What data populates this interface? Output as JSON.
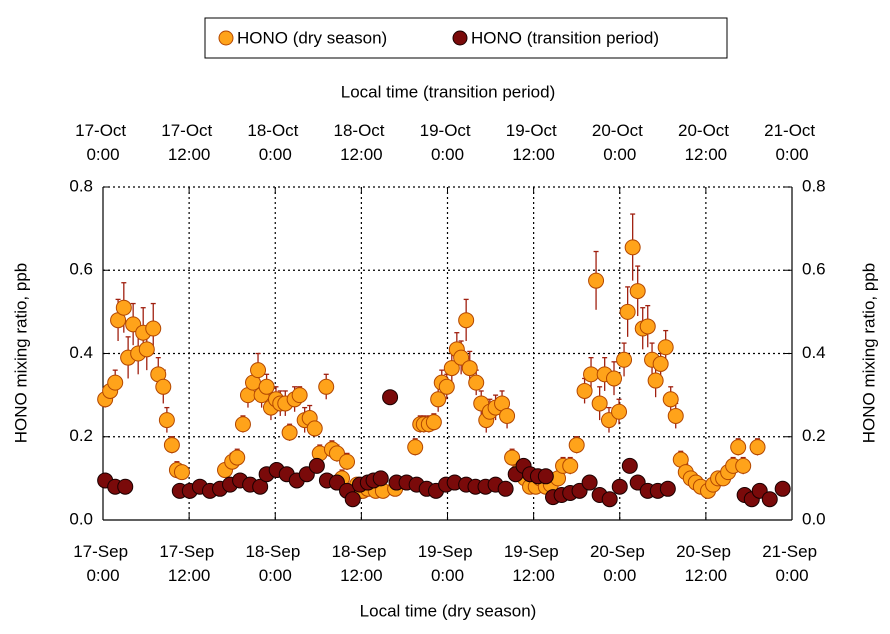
{
  "chart_data": {
    "type": "scatter",
    "xlabel": "Local time (dry season)",
    "x2label": "Local time (transition period)",
    "ylabel": "HONO mixing ratio,  ppb",
    "y2label": "HONO mixing ratio,  ppb",
    "xlim": [
      0,
      96
    ],
    "xticks": [
      {
        "value": 0,
        "label": "17-Sep 0:00"
      },
      {
        "value": 12,
        "label": "17-Sep 12:00"
      },
      {
        "value": 24,
        "label": "18-Sep 0:00"
      },
      {
        "value": 36,
        "label": "18-Sep 12:00"
      },
      {
        "value": 48,
        "label": "19-Sep 0:00"
      },
      {
        "value": 60,
        "label": "19-Sep 12:00"
      },
      {
        "value": 72,
        "label": "20-Sep 0:00"
      },
      {
        "value": 84,
        "label": "20-Sep 12:00"
      },
      {
        "value": 96,
        "label": "21-Sep 0:00"
      }
    ],
    "x2lim": [
      0,
      96
    ],
    "x2ticks": [
      {
        "value": 0,
        "label": "17-Oct 0:00"
      },
      {
        "value": 12,
        "label": "17-Oct 12:00"
      },
      {
        "value": 24,
        "label": "18-Oct 0:00"
      },
      {
        "value": 36,
        "label": "18-Oct 12:00"
      },
      {
        "value": 48,
        "label": "19-Oct 0:00"
      },
      {
        "value": 60,
        "label": "19-Oct 12:00"
      },
      {
        "value": 72,
        "label": "20-Oct 0:00"
      },
      {
        "value": 84,
        "label": "20-Oct 12:00"
      },
      {
        "value": 96,
        "label": "21-Oct 0:00"
      }
    ],
    "ylim": [
      0,
      0.8
    ],
    "yticks": [
      {
        "value": 0,
        "label": "0.0"
      },
      0.2,
      0.4,
      0.6,
      0.8
    ],
    "y2lim": [
      0,
      0.8
    ],
    "y2ticks": [
      {
        "value": 0,
        "label": "0.0"
      },
      0.2,
      0.4,
      0.6,
      0.8
    ],
    "grid": true,
    "legend": "top",
    "series": [
      {
        "name": "HONO (dry season)",
        "color": "#ffa31a",
        "edge": "#b34700",
        "error_color": "#a02010",
        "x": [
          0.3,
          1.0,
          1.7,
          2.1,
          2.9,
          3.5,
          4.2,
          4.9,
          5.6,
          6.1,
          7.0,
          7.7,
          8.4,
          8.9,
          9.6,
          10.3,
          11.0,
          17.0,
          18.0,
          18.7,
          19.5,
          20.2,
          20.9,
          21.6,
          22.1,
          22.8,
          23.4,
          24.1,
          24.7,
          25.4,
          26.0,
          26.7,
          27.4,
          28.1,
          28.8,
          29.5,
          30.2,
          31.1,
          31.9,
          32.6,
          33.3,
          34.0,
          34.7,
          35.4,
          36.2,
          36.9,
          38.0,
          39.0,
          40.7,
          43.5,
          44.2,
          44.7,
          45.4,
          46.1,
          46.7,
          47.2,
          47.9,
          48.6,
          49.3,
          49.9,
          50.6,
          51.1,
          52.0,
          52.7,
          53.4,
          53.9,
          54.7,
          55.6,
          56.3,
          57.0,
          57.8,
          58.8,
          59.5,
          60.3,
          60.9,
          61.7,
          62.4,
          63.4,
          64.1,
          65.1,
          66.0,
          67.1,
          68.0,
          68.7,
          69.2,
          69.9,
          70.5,
          71.2,
          71.9,
          72.6,
          73.1,
          73.8,
          74.5,
          75.2,
          75.9,
          76.5,
          77.0,
          77.7,
          78.4,
          79.1,
          79.8,
          80.5,
          81.2,
          81.9,
          82.6,
          83.3,
          84.3,
          85.0,
          85.7,
          86.4,
          87.1,
          87.8,
          88.5,
          89.2,
          91.2
        ],
        "values": [
          0.29,
          0.31,
          0.33,
          0.48,
          0.51,
          0.39,
          0.47,
          0.4,
          0.45,
          0.41,
          0.46,
          0.35,
          0.32,
          0.24,
          0.18,
          0.12,
          0.115,
          0.12,
          0.14,
          0.15,
          0.23,
          0.3,
          0.33,
          0.36,
          0.3,
          0.32,
          0.27,
          0.29,
          0.28,
          0.28,
          0.21,
          0.29,
          0.3,
          0.24,
          0.245,
          0.22,
          0.16,
          0.32,
          0.17,
          0.16,
          0.1,
          0.14,
          0.07,
          0.085,
          0.07,
          0.075,
          0.07,
          0.07,
          0.075,
          0.175,
          0.23,
          0.23,
          0.23,
          0.235,
          0.29,
          0.33,
          0.32,
          0.365,
          0.41,
          0.39,
          0.48,
          0.365,
          0.33,
          0.28,
          0.24,
          0.26,
          0.27,
          0.28,
          0.25,
          0.15,
          0.115,
          0.1,
          0.08,
          0.08,
          0.1,
          0.08,
          0.085,
          0.1,
          0.13,
          0.13,
          0.18,
          0.31,
          0.35,
          0.575,
          0.28,
          0.35,
          0.24,
          0.34,
          0.26,
          0.385,
          0.5,
          0.655,
          0.55,
          0.46,
          0.465,
          0.385,
          0.335,
          0.375,
          0.415,
          0.29,
          0.25,
          0.145,
          0.115,
          0.1,
          0.09,
          0.08,
          0.07,
          0.085,
          0.1,
          0.1,
          0.115,
          0.13,
          0.175,
          0.13,
          0.175
        ],
        "errors": [
          0.02,
          0.02,
          0.03,
          0.05,
          0.06,
          0.05,
          0.05,
          0.05,
          0.06,
          0.05,
          0.06,
          0.04,
          0.04,
          0.03,
          0.02,
          0.02,
          0.01,
          0.01,
          0.02,
          0.02,
          0.02,
          0.03,
          0.03,
          0.04,
          0.03,
          0.03,
          0.03,
          0.03,
          0.03,
          0.03,
          0.02,
          0.03,
          0.02,
          0.03,
          0.03,
          0.02,
          0.02,
          0.03,
          0.02,
          0.02,
          0.02,
          0.02,
          0.01,
          0.01,
          0.01,
          0.01,
          0.01,
          0.01,
          0.01,
          0.02,
          0.02,
          0.02,
          0.02,
          0.02,
          0.03,
          0.03,
          0.03,
          0.04,
          0.04,
          0.04,
          0.05,
          0.04,
          0.03,
          0.03,
          0.03,
          0.03,
          0.03,
          0.03,
          0.03,
          0.02,
          0.01,
          0.01,
          0.01,
          0.01,
          0.01,
          0.01,
          0.01,
          0.01,
          0.02,
          0.02,
          0.02,
          0.03,
          0.04,
          0.07,
          0.04,
          0.04,
          0.03,
          0.04,
          0.03,
          0.04,
          0.06,
          0.08,
          0.06,
          0.05,
          0.05,
          0.04,
          0.04,
          0.04,
          0.04,
          0.03,
          0.03,
          0.02,
          0.02,
          0.01,
          0.01,
          0.01,
          0.01,
          0.01,
          0.01,
          0.01,
          0.01,
          0.02,
          0.02,
          0.02,
          0.02
        ]
      },
      {
        "name": "HONO (transition period)",
        "color": "#7a0a0a",
        "edge": "#1a0000",
        "axis": "x2",
        "x": [
          0.3,
          1.7,
          3.1,
          10.7,
          12.1,
          13.5,
          14.9,
          16.3,
          17.7,
          19.1,
          20.5,
          21.9,
          22.8,
          24.2,
          25.6,
          27.0,
          28.4,
          29.8,
          31.2,
          32.6,
          34.0,
          34.8,
          35.8,
          36.9,
          37.7,
          38.7,
          40.0,
          40.9,
          42.3,
          43.7,
          45.1,
          46.4,
          47.8,
          49.0,
          50.6,
          51.9,
          53.3,
          54.7,
          56.1,
          57.5,
          58.6,
          59.5,
          60.6,
          61.7,
          62.7,
          63.9,
          65.1,
          66.4,
          67.8,
          69.2,
          70.6,
          72.0,
          73.4,
          74.5,
          75.9,
          77.3,
          78.7,
          89.4,
          90.4,
          91.5,
          92.9,
          94.7
        ],
        "values": [
          0.095,
          0.08,
          0.08,
          0.07,
          0.07,
          0.08,
          0.07,
          0.075,
          0.085,
          0.095,
          0.085,
          0.08,
          0.11,
          0.12,
          0.11,
          0.095,
          0.11,
          0.13,
          0.095,
          0.09,
          0.07,
          0.05,
          0.085,
          0.09,
          0.095,
          0.1,
          0.295,
          0.09,
          0.09,
          0.085,
          0.075,
          0.07,
          0.085,
          0.09,
          0.085,
          0.08,
          0.08,
          0.085,
          0.075,
          0.11,
          0.13,
          0.11,
          0.105,
          0.105,
          0.055,
          0.06,
          0.065,
          0.07,
          0.09,
          0.06,
          0.05,
          0.08,
          0.13,
          0.09,
          0.07,
          0.07,
          0.075,
          0.06,
          0.05,
          0.07,
          0.05,
          0.075
        ]
      }
    ]
  }
}
